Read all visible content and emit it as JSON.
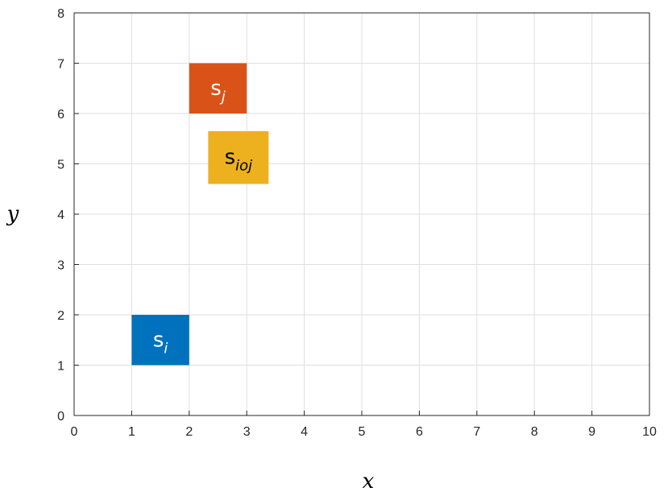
{
  "chart_data": {
    "type": "rectangles",
    "xlabel": "x",
    "ylabel": "y",
    "xlim": [
      0,
      10
    ],
    "ylim": [
      0,
      8
    ],
    "xticks": [
      0,
      1,
      2,
      3,
      4,
      5,
      6,
      7,
      8,
      9,
      10
    ],
    "yticks": [
      0,
      1,
      2,
      3,
      4,
      5,
      6,
      7,
      8
    ],
    "grid": true,
    "rects": [
      {
        "label": "s",
        "sub": "i",
        "x0": 1,
        "x1": 2,
        "y0": 1,
        "y1": 2,
        "color": "#0072BD",
        "text_color": "#ffffff"
      },
      {
        "label": "s",
        "sub": "j",
        "x0": 2,
        "x1": 3,
        "y0": 6,
        "y1": 7,
        "color": "#D95319",
        "text_color": "#ffffff"
      },
      {
        "label": "s",
        "sub": "ioj",
        "x0": 2.33,
        "x1": 3.38,
        "y0": 4.6,
        "y1": 5.65,
        "color": "#EDB120",
        "text_color": "#000000"
      }
    ]
  }
}
